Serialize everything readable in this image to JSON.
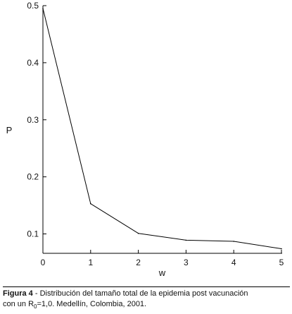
{
  "chart_data": {
    "type": "line",
    "xlabel": "w",
    "ylabel": "P",
    "x": [
      0,
      1,
      2,
      3,
      4,
      5
    ],
    "series": [
      {
        "values": [
          0.495,
          0.153,
          0.101,
          0.089,
          0.087,
          0.074
        ]
      }
    ],
    "xticks": [
      "0",
      "1",
      "2",
      "3",
      "4",
      "5"
    ],
    "yticks": [
      "0.1",
      "0.2",
      "0.3",
      "0.4",
      "0.5"
    ],
    "yticks_values": [
      0.1,
      0.2,
      0.3,
      0.4,
      0.5
    ],
    "xlim": [
      0,
      5
    ],
    "ylim": [
      0.066,
      0.5
    ],
    "grid": false
  },
  "caption": {
    "label": "Figura 4",
    "line1": " - Distribución del tamaño total de la epidemia post vacunación",
    "line2_pre": "con un R",
    "line2_sub": "0",
    "line2_post": "=1,0. Medellín, Colombia, 2001."
  }
}
